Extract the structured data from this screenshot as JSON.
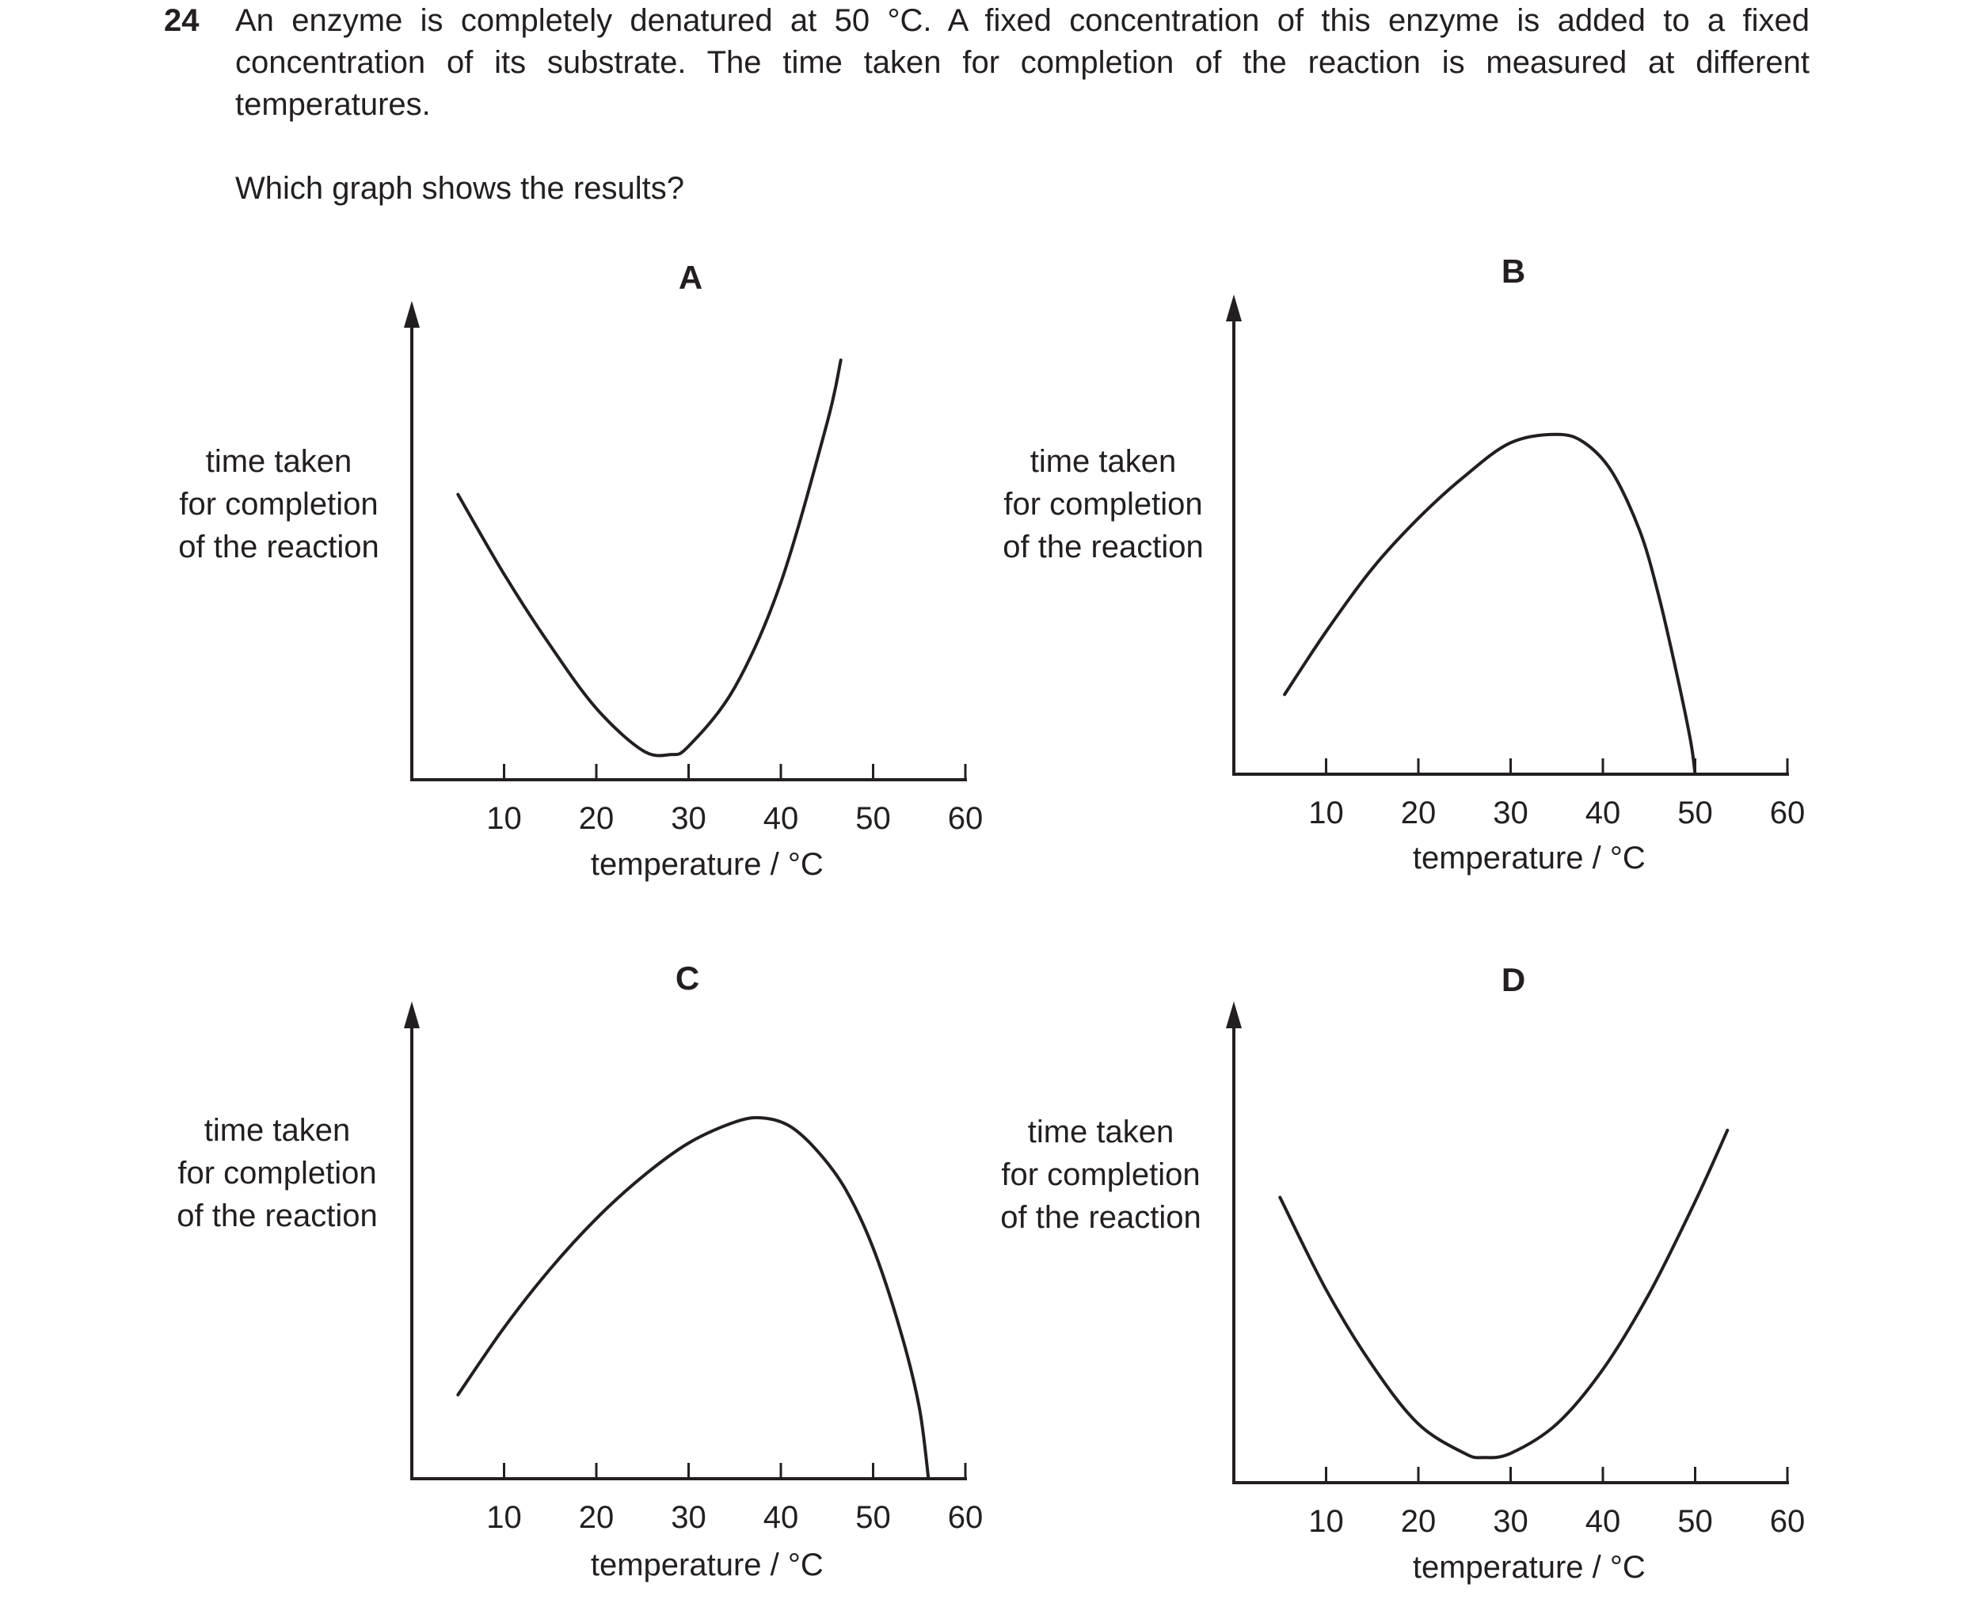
{
  "question": {
    "number": "24",
    "text": "An enzyme is completely denatured at 50 °C. A fixed concentration of this enzyme is added to a fixed concentration of its substrate. The time taken for completion of the reaction is measured at different temperatures.",
    "prompt": "Which graph shows the results?"
  },
  "chart_data": [
    {
      "type": "line",
      "title": "A",
      "xlabel": "temperature / °C",
      "ylabel": [
        "time taken",
        "for completion",
        "of the reaction"
      ],
      "xticks": [
        "10",
        "20",
        "30",
        "40",
        "50",
        "60"
      ],
      "xlim": [
        0,
        60
      ],
      "series": [
        {
          "x": [
            5,
            10,
            15,
            20,
            25,
            28,
            30,
            35,
            40,
            45,
            46.5
          ],
          "y": [
            0.68,
            0.49,
            0.32,
            0.17,
            0.07,
            0.06,
            0.08,
            0.22,
            0.47,
            0.85,
            1.0
          ]
        }
      ]
    },
    {
      "type": "line",
      "title": "B",
      "xlabel": "temperature / °C",
      "ylabel": [
        "time taken",
        "for completion",
        "of the reaction"
      ],
      "xticks": [
        "10",
        "20",
        "30",
        "40",
        "50",
        "60"
      ],
      "xlim": [
        0,
        60
      ],
      "series": [
        {
          "x": [
            5.5,
            10,
            15,
            20,
            25,
            30,
            35,
            38,
            41,
            44,
            46,
            48,
            49.5,
            50
          ],
          "y": [
            0.19,
            0.34,
            0.49,
            0.61,
            0.71,
            0.79,
            0.81,
            0.79,
            0.72,
            0.58,
            0.43,
            0.24,
            0.08,
            0.0
          ]
        }
      ]
    },
    {
      "type": "line",
      "title": "C",
      "xlabel": "temperature / °C",
      "ylabel": [
        "time taken",
        "for completion",
        "of the reaction"
      ],
      "xticks": [
        "10",
        "20",
        "30",
        "40",
        "50",
        "60"
      ],
      "xlim": [
        0,
        60
      ],
      "series": [
        {
          "x": [
            5,
            10,
            15,
            20,
            25,
            30,
            35,
            38,
            41,
            44,
            47,
            50,
            53,
            55,
            56
          ],
          "y": [
            0.2,
            0.36,
            0.5,
            0.62,
            0.72,
            0.8,
            0.85,
            0.86,
            0.84,
            0.78,
            0.69,
            0.55,
            0.35,
            0.17,
            0.0
          ]
        }
      ]
    },
    {
      "type": "line",
      "title": "D",
      "xlabel": "temperature / °C",
      "ylabel": [
        "time taken",
        "for completion",
        "of the reaction"
      ],
      "xticks": [
        "10",
        "20",
        "30",
        "40",
        "50",
        "60"
      ],
      "xlim": [
        0,
        60
      ],
      "series": [
        {
          "x": [
            5,
            10,
            15,
            20,
            25,
            27,
            30,
            35,
            40,
            45,
            50,
            53.5
          ],
          "y": [
            0.68,
            0.46,
            0.28,
            0.14,
            0.07,
            0.06,
            0.07,
            0.14,
            0.27,
            0.45,
            0.67,
            0.84
          ]
        }
      ]
    }
  ]
}
